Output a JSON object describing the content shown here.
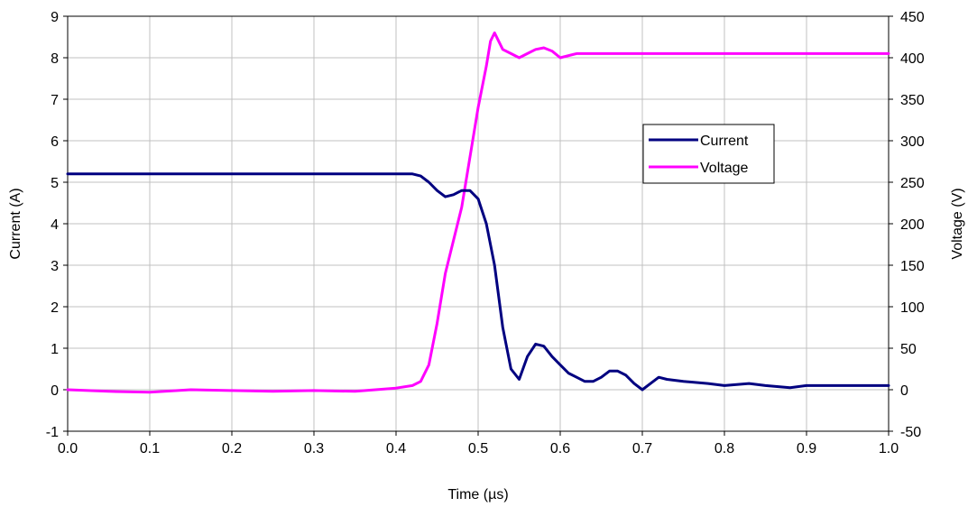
{
  "chart_data": {
    "type": "line",
    "xlabel": "Time (µs)",
    "ylabel_left": "Current (A)",
    "ylabel_right": "Voltage (V)",
    "xlim": [
      0.0,
      1.0
    ],
    "ylim_left": [
      -1,
      9
    ],
    "ylim_right": [
      -50,
      450
    ],
    "x_ticks": [
      "0.0",
      "0.1",
      "0.2",
      "0.3",
      "0.4",
      "0.5",
      "0.6",
      "0.7",
      "0.8",
      "0.9",
      "1.0"
    ],
    "y_ticks_left": [
      "-1",
      "0",
      "1",
      "2",
      "3",
      "4",
      "5",
      "6",
      "7",
      "8",
      "9"
    ],
    "y_ticks_right": [
      "-50",
      "0",
      "50",
      "100",
      "150",
      "200",
      "250",
      "300",
      "350",
      "400",
      "450"
    ],
    "grid": true,
    "legend": "inside-upper-right",
    "series": [
      {
        "name": "Current",
        "axis": "left",
        "color": "#000080",
        "x": [
          0.0,
          0.05,
          0.1,
          0.15,
          0.2,
          0.25,
          0.3,
          0.35,
          0.4,
          0.42,
          0.43,
          0.44,
          0.45,
          0.46,
          0.47,
          0.48,
          0.49,
          0.5,
          0.51,
          0.52,
          0.53,
          0.54,
          0.55,
          0.56,
          0.57,
          0.58,
          0.59,
          0.6,
          0.61,
          0.62,
          0.63,
          0.64,
          0.65,
          0.66,
          0.67,
          0.68,
          0.69,
          0.7,
          0.71,
          0.72,
          0.73,
          0.75,
          0.78,
          0.8,
          0.83,
          0.85,
          0.88,
          0.9,
          0.95,
          1.0
        ],
        "y": [
          5.2,
          5.2,
          5.2,
          5.2,
          5.2,
          5.2,
          5.2,
          5.2,
          5.2,
          5.2,
          5.15,
          5.0,
          4.8,
          4.65,
          4.7,
          4.8,
          4.8,
          4.6,
          4.0,
          3.0,
          1.5,
          0.5,
          0.25,
          0.8,
          1.1,
          1.05,
          0.8,
          0.6,
          0.4,
          0.3,
          0.2,
          0.2,
          0.3,
          0.45,
          0.45,
          0.35,
          0.15,
          0.0,
          0.15,
          0.3,
          0.25,
          0.2,
          0.15,
          0.1,
          0.15,
          0.1,
          0.05,
          0.1,
          0.1,
          0.1
        ]
      },
      {
        "name": "Voltage",
        "axis": "right",
        "color": "#ff00ff",
        "x": [
          0.0,
          0.05,
          0.1,
          0.15,
          0.2,
          0.25,
          0.3,
          0.35,
          0.4,
          0.42,
          0.43,
          0.44,
          0.45,
          0.46,
          0.47,
          0.48,
          0.49,
          0.5,
          0.51,
          0.515,
          0.52,
          0.53,
          0.54,
          0.55,
          0.56,
          0.57,
          0.58,
          0.59,
          0.6,
          0.62,
          0.65,
          0.7,
          0.75,
          0.8,
          0.85,
          0.9,
          0.95,
          1.0
        ],
        "y": [
          0,
          -2,
          -3,
          0,
          -1,
          -2,
          -1,
          -2,
          2,
          5,
          10,
          30,
          80,
          140,
          180,
          220,
          280,
          340,
          390,
          420,
          430,
          410,
          405,
          400,
          405,
          410,
          412,
          408,
          400,
          405,
          405,
          405,
          405,
          405,
          405,
          405,
          405,
          405
        ]
      }
    ]
  }
}
